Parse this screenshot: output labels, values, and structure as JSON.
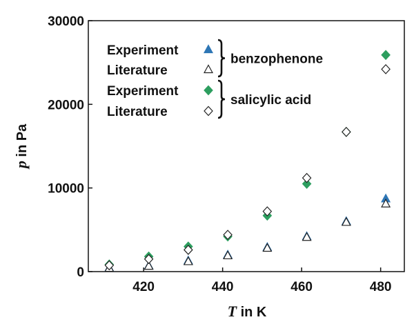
{
  "chart_data": {
    "type": "scatter",
    "title": "",
    "xlabel": {
      "var": "T",
      "unit": " in K"
    },
    "ylabel": {
      "var": "p",
      "unit": " in Pa"
    },
    "xlim": [
      406,
      486
    ],
    "ylim": [
      0,
      30000
    ],
    "xticks": [
      420,
      440,
      460,
      480
    ],
    "yticks": [
      0,
      10000,
      20000,
      30000
    ],
    "grid": false,
    "legend_position": "top-left",
    "legend_groups": [
      {
        "label": "benzophenone",
        "entries": [
          "Experiment",
          "Literature"
        ]
      },
      {
        "label": "salicylic acid",
        "entries": [
          "Experiment",
          "Literature"
        ]
      }
    ],
    "series": [
      {
        "group": "benzophenone",
        "name": "Experiment",
        "marker": "triangle",
        "filled": true,
        "color": "#2e76b5",
        "x": [
          411.3,
          421.3,
          431.3,
          441.3,
          451.3,
          461.3,
          471.3,
          481.3
        ],
        "y": [
          450,
          700,
          1300,
          2000,
          2900,
          4200,
          6000,
          8700
        ]
      },
      {
        "group": "benzophenone",
        "name": "Literature",
        "marker": "triangle",
        "filled": false,
        "color": "#222222",
        "x": [
          411.3,
          421.3,
          431.3,
          441.3,
          451.3,
          461.3,
          471.3,
          481.3
        ],
        "y": [
          400,
          650,
          1200,
          1900,
          2800,
          4100,
          5900,
          8100
        ]
      },
      {
        "group": "salicylic acid",
        "name": "Experiment",
        "marker": "diamond",
        "filled": true,
        "color": "#2d9e5f",
        "x": [
          411.3,
          421.3,
          431.3,
          441.3,
          451.3,
          461.3,
          471.3,
          481.3
        ],
        "y": [
          850,
          1800,
          3000,
          4200,
          6700,
          10500,
          16700,
          25900
        ]
      },
      {
        "group": "salicylic acid",
        "name": "Literature",
        "marker": "diamond",
        "filled": false,
        "color": "#222222",
        "x": [
          411.3,
          421.3,
          431.3,
          441.3,
          451.3,
          461.3,
          471.3,
          481.3
        ],
        "y": [
          750,
          1500,
          2600,
          4400,
          7200,
          11200,
          16700,
          24200
        ]
      }
    ]
  }
}
